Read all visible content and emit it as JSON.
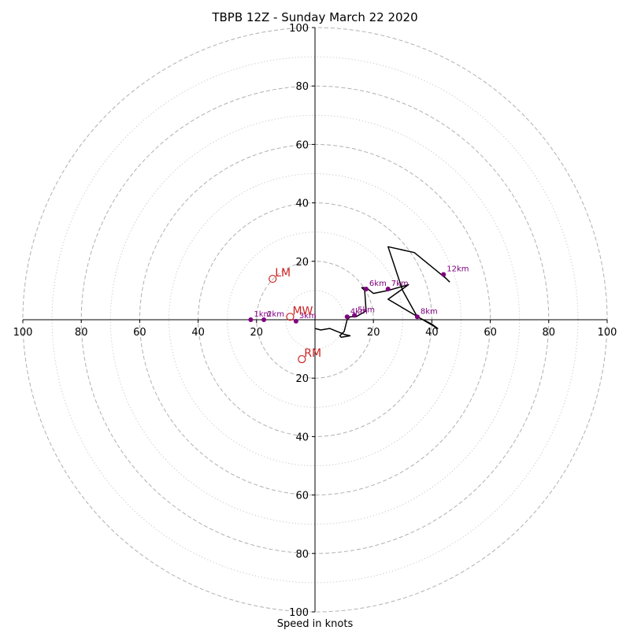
{
  "chart_data": {
    "type": "scatter",
    "title": "TBPB 12Z - Sunday March 22 2020",
    "xlabel": "Speed in knots",
    "ylabel": "",
    "xlim": [
      -100,
      100
    ],
    "ylim": [
      -100,
      100
    ],
    "grid": {
      "dashed_rings": [
        20,
        40,
        60,
        80,
        100
      ],
      "dotted_rings": [
        10,
        30,
        50,
        70,
        90
      ]
    },
    "ticks": {
      "x": [
        {
          "v": -100,
          "label": "100"
        },
        {
          "v": -80,
          "label": "80"
        },
        {
          "v": -60,
          "label": "60"
        },
        {
          "v": -40,
          "label": "40"
        },
        {
          "v": -20,
          "label": "20"
        },
        {
          "v": 20,
          "label": "20"
        },
        {
          "v": 40,
          "label": "40"
        },
        {
          "v": 60,
          "label": "60"
        },
        {
          "v": 80,
          "label": "80"
        },
        {
          "v": 100,
          "label": "100"
        }
      ],
      "y": [
        {
          "v": 100,
          "label": "100"
        },
        {
          "v": 80,
          "label": "80"
        },
        {
          "v": 60,
          "label": "60"
        },
        {
          "v": 40,
          "label": "40"
        },
        {
          "v": 20,
          "label": "20"
        },
        {
          "v": -20,
          "label": "20"
        },
        {
          "v": -40,
          "label": "40"
        },
        {
          "v": -60,
          "label": "60"
        },
        {
          "v": -80,
          "label": "80"
        },
        {
          "v": -100,
          "label": "100"
        }
      ]
    },
    "hodograph": {
      "color": "#000000",
      "points": [
        [
          0,
          -3
        ],
        [
          2,
          -3.5
        ],
        [
          5,
          -3
        ],
        [
          10,
          -5
        ],
        [
          12,
          -5.5
        ],
        [
          9,
          -6
        ],
        [
          8.5,
          -5.5
        ],
        [
          10,
          -4
        ],
        [
          11,
          0
        ],
        [
          12,
          1
        ],
        [
          14,
          1
        ],
        [
          17.5,
          3
        ],
        [
          17,
          10
        ],
        [
          16,
          11
        ],
        [
          17.5,
          11
        ],
        [
          20,
          9
        ],
        [
          25,
          10
        ],
        [
          32,
          12
        ],
        [
          25,
          7
        ],
        [
          42,
          -3
        ],
        [
          40,
          -1.5
        ],
        [
          35,
          1
        ],
        [
          30,
          10
        ],
        [
          25,
          25
        ],
        [
          34,
          23
        ],
        [
          45,
          14
        ],
        [
          46,
          13
        ],
        [
          44,
          15
        ]
      ]
    },
    "height_markers": [
      {
        "label": "1km",
        "u": -22,
        "v": 0
      },
      {
        "label": "2km",
        "u": -17.5,
        "v": 0
      },
      {
        "label": "3km",
        "u": -6.5,
        "v": -0.5
      },
      {
        "label": "4km",
        "u": 11,
        "v": 1
      },
      {
        "label": "5km",
        "u": 13.5,
        "v": 1.5
      },
      {
        "label": "6km",
        "u": 17.5,
        "v": 10.5
      },
      {
        "label": "7km",
        "u": 25,
        "v": 10.5
      },
      {
        "label": "8km",
        "u": 35,
        "v": 1
      },
      {
        "label": "12km",
        "u": 44,
        "v": 15.5
      }
    ],
    "storm_motion": [
      {
        "label": "LM",
        "u": -14.5,
        "v": 14
      },
      {
        "label": "MW",
        "u": -8.5,
        "v": 1
      },
      {
        "label": "RM",
        "u": -4.5,
        "v": -13.5
      }
    ],
    "colors": {
      "hodograph": "#000000",
      "height_marker": "#800080",
      "storm_motion": "#cc2222",
      "grid": "#b0b0b0"
    }
  }
}
